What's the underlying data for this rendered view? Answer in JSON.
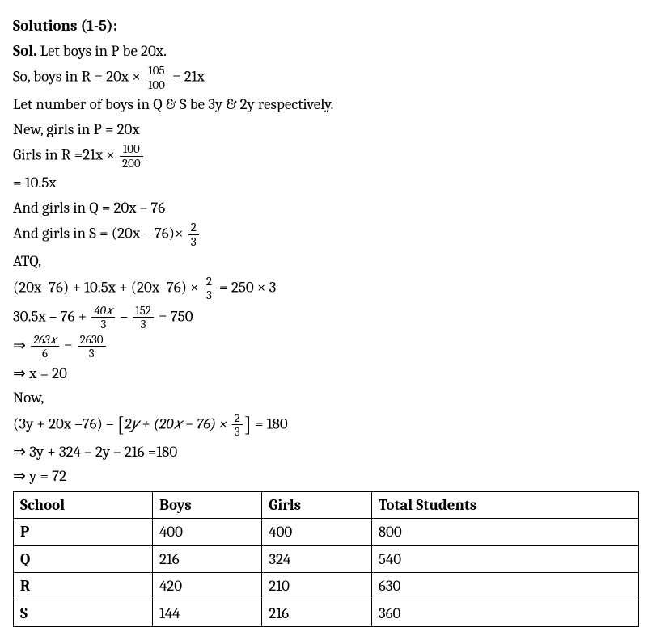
{
  "heading": "Solutions (1-5):",
  "lines": {
    "l1a": "Sol.",
    "l1b": " Let boys in P be 20x.",
    "l2a": "So, boys in R = 20x × ",
    "l2f": {
      "num": "105",
      "den": "100"
    },
    "l2b": " = 21x",
    "l3": "Let number of boys in Q & S be 3y & 2y respectively.",
    "l4": "New, girls in P = 20x",
    "l5a": "Girls in R =21x × ",
    "l5f": {
      "num": "100",
      "den": "200"
    },
    "l6": "= 10.5x",
    "l7": "And girls in Q = 20x – 76",
    "l8a": "And girls in S = (20x – 76)× ",
    "l8f": {
      "num": "2",
      "den": "3"
    },
    "l9": "ATQ,",
    "l10a": "(20x–76) + 10.5x + (20x–76) × ",
    "l10f": {
      "num": "2",
      "den": "3"
    },
    "l10b": " = 250 × 3",
    "l11a": "30.5x – 76 + ",
    "l11f1": {
      "num": "40𝑥",
      "den": "3"
    },
    "l11b": " – ",
    "l11f2": {
      "num": "152",
      "den": "3"
    },
    "l11c": " = 750",
    "l12a": "⇒ ",
    "l12f1": {
      "num": "263𝑥",
      "den": "6"
    },
    "l12b": " = ",
    "l12f2": {
      "num": "2630",
      "den": "3"
    },
    "l13": "⇒ x = 20",
    "l14": "Now,",
    "l15a": "(3y + 20x –76) – ",
    "l15b": "2𝑦 + (20𝑥 − 76) × ",
    "l15f": {
      "num": "2",
      "den": "3"
    },
    "l15c": " = 180",
    "l16": "⇒ 3y + 324 – 2y – 216 =180",
    "l17": "⇒ y = 72"
  },
  "table": {
    "headers": [
      "School",
      "Boys",
      "Girls",
      "Total Students"
    ],
    "rows": [
      [
        "P",
        "400",
        "400",
        "800"
      ],
      [
        "Q",
        "216",
        "324",
        "540"
      ],
      [
        "R",
        "420",
        "210",
        "630"
      ],
      [
        "S",
        "144",
        "216",
        "360"
      ]
    ]
  }
}
